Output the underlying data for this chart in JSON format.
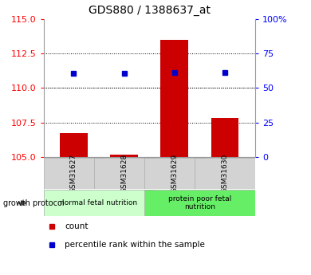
{
  "title": "GDS880 / 1388637_at",
  "samples": [
    "GSM31627",
    "GSM31628",
    "GSM31629",
    "GSM31630"
  ],
  "bar_values": [
    106.7,
    105.15,
    113.5,
    107.8
  ],
  "percentile_values": [
    60.5,
    60.5,
    61.5,
    61.0
  ],
  "bar_color": "#cc0000",
  "percentile_color": "#0000cc",
  "ylim_left": [
    105,
    115
  ],
  "ylim_right": [
    0,
    100
  ],
  "yticks_left": [
    105,
    107.5,
    110,
    112.5,
    115
  ],
  "yticks_right": [
    0,
    25,
    50,
    75,
    100
  ],
  "ytick_labels_right": [
    "0",
    "25",
    "50",
    "75",
    "100%"
  ],
  "grid_values": [
    107.5,
    110,
    112.5
  ],
  "groups": [
    {
      "label": "normal fetal nutrition",
      "indices": [
        0,
        1
      ],
      "color": "#ccffcc"
    },
    {
      "label": "protein poor fetal\nnutrition",
      "indices": [
        2,
        3
      ],
      "color": "#66ee66"
    }
  ],
  "group_label": "growth protocol",
  "legend_count_label": "count",
  "legend_percentile_label": "percentile rank within the sample",
  "bar_base": 105,
  "bar_width": 0.55
}
